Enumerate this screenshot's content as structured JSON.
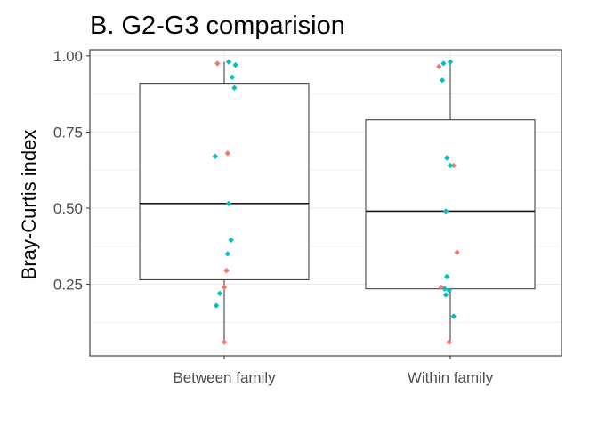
{
  "chart_data": {
    "type": "boxplot",
    "title": "B. G2-G3 comparision",
    "xlabel": "",
    "ylabel": "Bray-Curtis index",
    "categories": [
      "Between family",
      "Within family"
    ],
    "yticks": [
      0.25,
      0.5,
      0.75,
      1.0
    ],
    "ytick_labels": [
      "0.25",
      "0.50",
      "0.75",
      "1.00"
    ],
    "ylim": [
      0.015,
      1.02
    ],
    "grid": true,
    "legend": "none",
    "boxes": [
      {
        "category": "Between family",
        "q1": 0.265,
        "median": 0.515,
        "q3": 0.91,
        "whisker_low": 0.06,
        "whisker_high": 0.98
      },
      {
        "category": "Within family",
        "q1": 0.235,
        "median": 0.49,
        "q3": 0.79,
        "whisker_low": 0.06,
        "whisker_high": 0.98
      }
    ],
    "points": [
      {
        "category": "Between family",
        "jitter": -0.03,
        "y": 0.975,
        "color": "#F8766D"
      },
      {
        "category": "Between family",
        "jitter": 0.02,
        "y": 0.98,
        "color": "#00BFC4"
      },
      {
        "category": "Between family",
        "jitter": 0.05,
        "y": 0.97,
        "color": "#00BFC4"
      },
      {
        "category": "Between family",
        "jitter": 0.035,
        "y": 0.93,
        "color": "#00BFC4"
      },
      {
        "category": "Between family",
        "jitter": 0.045,
        "y": 0.895,
        "color": "#00BFC4"
      },
      {
        "category": "Between family",
        "jitter": 0.015,
        "y": 0.68,
        "color": "#F8766D"
      },
      {
        "category": "Between family",
        "jitter": -0.04,
        "y": 0.67,
        "color": "#00BFC4"
      },
      {
        "category": "Between family",
        "jitter": 0.02,
        "y": 0.515,
        "color": "#00BFC4"
      },
      {
        "category": "Between family",
        "jitter": 0.03,
        "y": 0.395,
        "color": "#00BFC4"
      },
      {
        "category": "Between family",
        "jitter": 0.015,
        "y": 0.35,
        "color": "#00BFC4"
      },
      {
        "category": "Between family",
        "jitter": 0.01,
        "y": 0.295,
        "color": "#F8766D"
      },
      {
        "category": "Between family",
        "jitter": 0.0,
        "y": 0.24,
        "color": "#F8766D"
      },
      {
        "category": "Between family",
        "jitter": -0.02,
        "y": 0.22,
        "color": "#00BFC4"
      },
      {
        "category": "Between family",
        "jitter": -0.035,
        "y": 0.18,
        "color": "#00BFC4"
      },
      {
        "category": "Between family",
        "jitter": 0.0,
        "y": 0.06,
        "color": "#F8766D"
      },
      {
        "category": "Within family",
        "jitter": -0.05,
        "y": 0.965,
        "color": "#F8766D"
      },
      {
        "category": "Within family",
        "jitter": -0.03,
        "y": 0.975,
        "color": "#00BFC4"
      },
      {
        "category": "Within family",
        "jitter": 0.0,
        "y": 0.98,
        "color": "#00BFC4"
      },
      {
        "category": "Within family",
        "jitter": -0.035,
        "y": 0.92,
        "color": "#00BFC4"
      },
      {
        "category": "Within family",
        "jitter": -0.015,
        "y": 0.665,
        "color": "#00BFC4"
      },
      {
        "category": "Within family",
        "jitter": 0.015,
        "y": 0.64,
        "color": "#F8766D"
      },
      {
        "category": "Within family",
        "jitter": 0.0,
        "y": 0.64,
        "color": "#00BFC4"
      },
      {
        "category": "Within family",
        "jitter": -0.02,
        "y": 0.49,
        "color": "#00BFC4"
      },
      {
        "category": "Within family",
        "jitter": 0.03,
        "y": 0.355,
        "color": "#F8766D"
      },
      {
        "category": "Within family",
        "jitter": -0.015,
        "y": 0.275,
        "color": "#00BFC4"
      },
      {
        "category": "Within family",
        "jitter": -0.04,
        "y": 0.24,
        "color": "#F8766D"
      },
      {
        "category": "Within family",
        "jitter": -0.025,
        "y": 0.235,
        "color": "#00BFC4"
      },
      {
        "category": "Within family",
        "jitter": -0.005,
        "y": 0.23,
        "color": "#00BFC4"
      },
      {
        "category": "Within family",
        "jitter": -0.02,
        "y": 0.215,
        "color": "#00BFC4"
      },
      {
        "category": "Within family",
        "jitter": 0.015,
        "y": 0.145,
        "color": "#00BFC4"
      },
      {
        "category": "Within family",
        "jitter": -0.005,
        "y": 0.06,
        "color": "#F8766D"
      }
    ]
  },
  "colors": {
    "grid": "#ebebeb",
    "panel_border": "#333333",
    "box_line": "#333333",
    "median_line": "#1a1a1a",
    "point_red": "#F8766D",
    "point_teal": "#00BFC4"
  }
}
